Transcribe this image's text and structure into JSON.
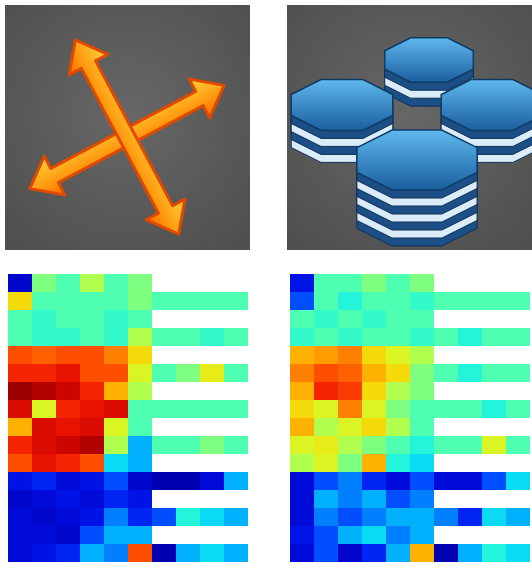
{
  "chart_data": [
    {
      "type": "heatmap",
      "tick_labels": false,
      "color_range": [
        0,
        1
      ],
      "cells": [
        [
          0.08,
          0.5,
          0.45,
          0.55,
          0.45,
          0.5,
          null,
          null,
          null,
          null
        ],
        [
          0.65,
          0.45,
          0.45,
          0.45,
          0.45,
          0.5,
          0.45,
          0.45,
          0.45,
          0.45
        ],
        [
          0.45,
          0.42,
          0.45,
          0.45,
          0.42,
          0.45,
          null,
          null,
          null,
          null
        ],
        [
          0.45,
          0.42,
          0.42,
          0.45,
          0.42,
          0.55,
          0.45,
          0.45,
          0.42,
          0.45
        ],
        [
          0.8,
          0.78,
          0.8,
          0.8,
          0.75,
          0.65,
          null,
          null,
          null,
          null
        ],
        [
          0.85,
          0.85,
          0.88,
          0.8,
          0.8,
          0.6,
          0.45,
          0.5,
          0.62,
          0.45
        ],
        [
          0.97,
          0.95,
          0.92,
          0.85,
          0.7,
          0.55,
          null,
          null,
          null,
          null
        ],
        [
          0.9,
          0.6,
          0.85,
          0.88,
          0.9,
          0.45,
          0.45,
          0.45,
          0.45,
          0.45
        ],
        [
          0.7,
          0.9,
          0.88,
          0.9,
          0.6,
          0.45,
          null,
          null,
          null,
          null
        ],
        [
          0.85,
          0.9,
          0.92,
          0.95,
          0.55,
          0.3,
          0.45,
          0.45,
          0.5,
          0.45
        ],
        [
          0.8,
          0.88,
          0.85,
          0.8,
          0.35,
          0.3,
          null,
          null,
          null,
          null
        ],
        [
          0.12,
          0.15,
          0.1,
          0.12,
          0.2,
          0.08,
          0.05,
          0.05,
          0.1,
          0.3
        ],
        [
          0.08,
          0.1,
          0.12,
          0.1,
          0.15,
          0.12,
          null,
          null,
          null,
          null
        ],
        [
          0.1,
          0.08,
          0.1,
          0.12,
          0.25,
          0.15,
          0.2,
          0.4,
          0.35,
          0.3
        ],
        [
          0.1,
          0.1,
          0.08,
          0.2,
          0.3,
          0.3,
          null,
          null,
          null,
          null
        ],
        [
          0.1,
          0.12,
          0.15,
          0.3,
          0.25,
          0.8,
          0.05,
          0.3,
          0.35,
          0.3
        ]
      ]
    },
    {
      "type": "heatmap",
      "tick_labels": false,
      "color_range": [
        0,
        1
      ],
      "cells": [
        [
          0.12,
          0.45,
          0.45,
          0.5,
          0.45,
          0.5,
          null,
          null,
          null,
          null
        ],
        [
          0.2,
          0.45,
          0.4,
          0.45,
          0.45,
          0.42,
          0.45,
          0.45,
          0.45,
          0.45
        ],
        [
          0.45,
          0.42,
          0.45,
          0.42,
          0.45,
          0.45,
          null,
          null,
          null,
          null
        ],
        [
          0.42,
          0.45,
          0.42,
          0.45,
          0.45,
          0.42,
          0.45,
          0.4,
          0.45,
          0.45
        ],
        [
          0.7,
          0.72,
          0.75,
          0.65,
          0.6,
          0.55,
          null,
          null,
          null,
          null
        ],
        [
          0.75,
          0.8,
          0.78,
          0.7,
          0.65,
          0.5,
          0.45,
          0.4,
          0.45,
          0.45
        ],
        [
          0.7,
          0.85,
          0.82,
          0.65,
          0.55,
          0.5,
          null,
          null,
          null,
          null
        ],
        [
          0.65,
          0.6,
          0.75,
          0.6,
          0.5,
          0.45,
          0.45,
          0.45,
          0.4,
          0.45
        ],
        [
          0.7,
          0.55,
          0.6,
          0.65,
          0.55,
          0.45,
          null,
          null,
          null,
          null
        ],
        [
          0.6,
          0.62,
          0.55,
          0.5,
          0.45,
          0.4,
          0.45,
          0.45,
          0.6,
          0.45
        ],
        [
          0.55,
          0.6,
          0.5,
          0.7,
          0.4,
          0.35,
          null,
          null,
          null,
          null
        ],
        [
          0.1,
          0.2,
          0.25,
          0.15,
          0.1,
          0.2,
          0.1,
          0.1,
          0.2,
          0.35
        ],
        [
          0.1,
          0.3,
          0.25,
          0.3,
          0.2,
          0.25,
          null,
          null,
          null,
          null
        ],
        [
          0.1,
          0.25,
          0.2,
          0.25,
          0.3,
          0.3,
          0.25,
          0.15,
          0.35,
          0.3
        ],
        [
          0.12,
          0.2,
          0.3,
          0.35,
          0.25,
          0.3,
          null,
          null,
          null,
          null
        ],
        [
          0.1,
          0.2,
          0.08,
          0.15,
          0.3,
          0.7,
          0.05,
          0.3,
          0.4,
          0.35
        ]
      ]
    }
  ]
}
